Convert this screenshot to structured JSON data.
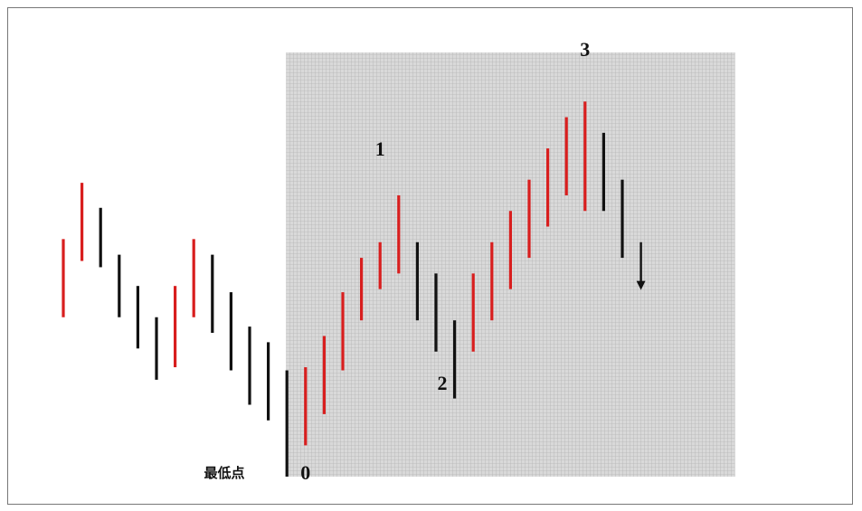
{
  "chart_data": {
    "type": "bar",
    "subtype": "price-range-bars",
    "title": "",
    "xlabel": "",
    "ylabel": "",
    "grid": false,
    "colors": {
      "up": "#d81e1e",
      "down": "#111111",
      "highlight": "#cfcfcf"
    },
    "ylim": [
      0,
      100
    ],
    "highlight_range": [
      12,
      31
    ],
    "bars": [
      {
        "i": 0,
        "low": 40.8,
        "high": 60.8,
        "color": "up"
      },
      {
        "i": 1,
        "low": 55.2,
        "high": 75.2,
        "color": "up"
      },
      {
        "i": 2,
        "low": 53.6,
        "high": 68.8,
        "color": "down"
      },
      {
        "i": 3,
        "low": 40.8,
        "high": 56.8,
        "color": "down"
      },
      {
        "i": 4,
        "low": 32.8,
        "high": 48.8,
        "color": "down"
      },
      {
        "i": 5,
        "low": 24.8,
        "high": 40.8,
        "color": "down"
      },
      {
        "i": 6,
        "low": 28.0,
        "high": 48.8,
        "color": "up"
      },
      {
        "i": 7,
        "low": 40.8,
        "high": 60.8,
        "color": "up"
      },
      {
        "i": 8,
        "low": 36.8,
        "high": 56.8,
        "color": "down"
      },
      {
        "i": 9,
        "low": 27.2,
        "high": 47.2,
        "color": "down"
      },
      {
        "i": 10,
        "low": 18.4,
        "high": 38.4,
        "color": "down"
      },
      {
        "i": 11,
        "low": 14.4,
        "high": 34.4,
        "color": "down"
      },
      {
        "i": 12,
        "low": 0.0,
        "high": 27.2,
        "color": "down"
      },
      {
        "i": 13,
        "low": 8.0,
        "high": 28.0,
        "color": "up"
      },
      {
        "i": 14,
        "low": 16.0,
        "high": 36.0,
        "color": "up"
      },
      {
        "i": 15,
        "low": 27.2,
        "high": 47.2,
        "color": "up"
      },
      {
        "i": 16,
        "low": 40.0,
        "high": 56.0,
        "color": "up"
      },
      {
        "i": 17,
        "low": 48.0,
        "high": 60.0,
        "color": "up"
      },
      {
        "i": 18,
        "low": 52.0,
        "high": 72.0,
        "color": "up"
      },
      {
        "i": 19,
        "low": 40.0,
        "high": 60.0,
        "color": "down"
      },
      {
        "i": 20,
        "low": 32.0,
        "high": 52.0,
        "color": "down"
      },
      {
        "i": 21,
        "low": 20.0,
        "high": 40.0,
        "color": "down"
      },
      {
        "i": 22,
        "low": 32.0,
        "high": 52.0,
        "color": "up"
      },
      {
        "i": 23,
        "low": 40.0,
        "high": 60.0,
        "color": "up"
      },
      {
        "i": 24,
        "low": 48.0,
        "high": 68.0,
        "color": "up"
      },
      {
        "i": 25,
        "low": 56.0,
        "high": 76.0,
        "color": "up"
      },
      {
        "i": 26,
        "low": 64.0,
        "high": 84.0,
        "color": "up"
      },
      {
        "i": 27,
        "low": 72.0,
        "high": 92.0,
        "color": "up"
      },
      {
        "i": 28,
        "low": 68.0,
        "high": 96.0,
        "color": "up"
      },
      {
        "i": 29,
        "low": 68.0,
        "high": 88.0,
        "color": "down"
      },
      {
        "i": 30,
        "low": 56.0,
        "high": 76.0,
        "color": "down"
      }
    ],
    "arrow": {
      "i": 31,
      "from": 60.0,
      "to": 48.0
    },
    "annotations": [
      {
        "text": "0",
        "i": 13,
        "anchor": "below"
      },
      {
        "text": "1",
        "i": 17,
        "anchor": "above"
      },
      {
        "text": "2",
        "i": 19.5,
        "anchor": "below"
      },
      {
        "text": "3",
        "i": 28,
        "anchor": "above"
      },
      {
        "text": "最低点",
        "i": 10,
        "anchor": "bottom"
      }
    ]
  }
}
